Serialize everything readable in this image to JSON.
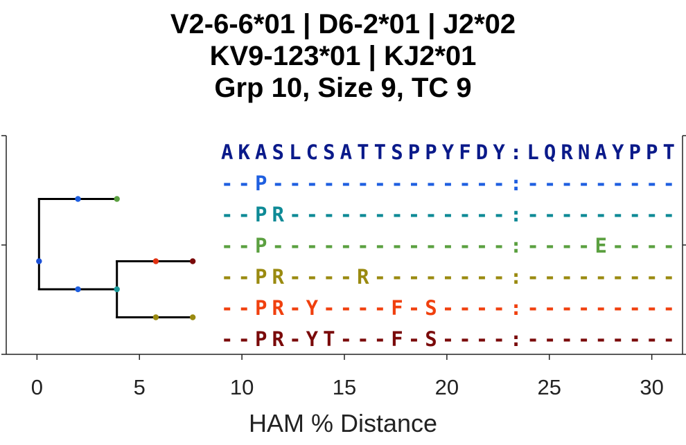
{
  "title": {
    "line1": "V2-6-6*01 | D6-2*01 | J2*02",
    "line2": "KV9-123*01 | KJ2*01",
    "line3": "Grp 10, Size 9, TC 9"
  },
  "chart_data": {
    "type": "tree-alignment",
    "xlabel": "HAM % Distance",
    "xlim": [
      -1.5,
      31.5
    ],
    "xticks": [
      0,
      5,
      10,
      15,
      20,
      25,
      30
    ],
    "tree": {
      "edges": [
        {
          "from": [
            0.1,
            3.5
          ],
          "to": [
            0.1,
            1.5
          ]
        },
        {
          "from": [
            0.1,
            1.5
          ],
          "to": [
            3.9,
            1.5
          ]
        },
        {
          "from": [
            0.1,
            3.5
          ],
          "to": [
            0.1,
            4.4
          ]
        },
        {
          "from": [
            0.1,
            4.4
          ],
          "to": [
            3.9,
            4.4
          ]
        },
        {
          "from": [
            3.9,
            3.5
          ],
          "to": [
            3.9,
            5.3
          ]
        },
        {
          "from": [
            3.9,
            3.5
          ],
          "to": [
            7.6,
            3.5
          ]
        },
        {
          "from": [
            3.9,
            5.3
          ],
          "to": [
            7.6,
            5.3
          ]
        }
      ],
      "nodes": [
        {
          "x": 0.1,
          "y": 3.5,
          "color": "#1a4fd6"
        },
        {
          "x": 2.0,
          "y": 1.5,
          "color": "#1f5fe0"
        },
        {
          "x": 3.9,
          "y": 1.5,
          "color": "#5ba040"
        },
        {
          "x": 2.0,
          "y": 4.4,
          "color": "#1f5fe0"
        },
        {
          "x": 3.9,
          "y": 4.4,
          "color": "#1a9a9a"
        },
        {
          "x": 5.8,
          "y": 3.5,
          "color": "#e03010"
        },
        {
          "x": 7.6,
          "y": 3.5,
          "color": "#7a0a0a"
        },
        {
          "x": 5.8,
          "y": 5.3,
          "color": "#9a8a10"
        },
        {
          "x": 7.6,
          "y": 5.3,
          "color": "#9a8a10"
        }
      ]
    },
    "alignment": [
      {
        "text": "AKASLCSATTSPPYFDY:LQRNAYPPT",
        "color": "#0a1a8a"
      },
      {
        "text": "--P--------------:---------",
        "color": "#1f5fe0"
      },
      {
        "text": "--PR-------------:---------",
        "color": "#0e8a96"
      },
      {
        "text": "--P--------------:----E----",
        "color": "#5ba040"
      },
      {
        "text": "--PR----R--------:---------",
        "color": "#9a8a10"
      },
      {
        "text": "--PR-Y----F-S----:---------",
        "color": "#f0400e"
      },
      {
        "text": "--PR-YT---F-S----:---------",
        "color": "#7a0a0a"
      }
    ]
  }
}
